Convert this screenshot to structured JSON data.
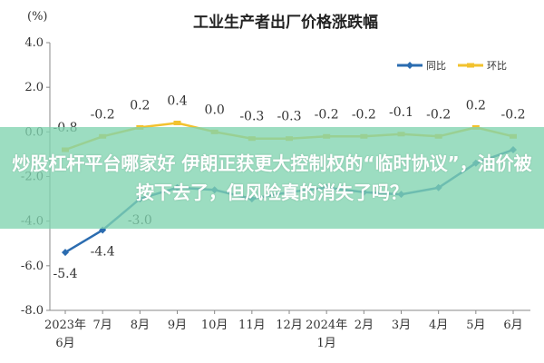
{
  "chart_data": {
    "type": "line",
    "title": "工业生产者出厂价格涨跌幅",
    "y_unit": "(%)",
    "ylim": [
      -8.0,
      4.0
    ],
    "yticks": [
      "4.0",
      "2.0",
      "0.0",
      "-2.0",
      "-4.0",
      "-6.0",
      "-8.0"
    ],
    "categories": [
      "2023年6月",
      "7月",
      "8月",
      "9月",
      "10月",
      "11月",
      "12月",
      "2024年1月",
      "2月",
      "3月",
      "4月",
      "5月",
      "6月"
    ],
    "category_lines": [
      [
        "2023年",
        "6月"
      ],
      [
        "7月"
      ],
      [
        "8月"
      ],
      [
        "9月"
      ],
      [
        "10月"
      ],
      [
        "11月"
      ],
      [
        "12月"
      ],
      [
        "2024年",
        "1月"
      ],
      [
        "2月"
      ],
      [
        "3月"
      ],
      [
        "4月"
      ],
      [
        "5月"
      ],
      [
        "6月"
      ]
    ],
    "series": [
      {
        "name": "同比",
        "color": "#2b6cb0",
        "values": [
          -5.4,
          -4.4,
          -3.0,
          -2.5,
          -2.6,
          -3.0,
          -2.7,
          -2.5,
          -2.7,
          -2.8,
          -2.5,
          -1.4,
          -0.8
        ],
        "labels": [
          "-5.4",
          "-4.4",
          "-3.0",
          "",
          "",
          "",
          "",
          "",
          "",
          "",
          "",
          "",
          ""
        ]
      },
      {
        "name": "环比",
        "color": "#f2c22e",
        "values": [
          -0.8,
          -0.2,
          0.2,
          0.4,
          0.0,
          -0.3,
          -0.3,
          -0.2,
          -0.2,
          -0.1,
          -0.2,
          0.2,
          -0.2
        ],
        "labels": [
          "-0.8",
          "-0.2",
          "0.2",
          "0.4",
          "0.0",
          "-0.3",
          "-0.3",
          "-0.2",
          "-0.2",
          "-0.1",
          "-0.2",
          "0.2",
          "-0.2"
        ]
      }
    ],
    "legend": "top-right",
    "grid": false
  },
  "overlay": {
    "text": "炒股杠杆平台哪家好 伊朗正获更大控制权的“临时协议”，油价被按下去了，但风险真的消失了吗？",
    "background": "#80d4b0"
  }
}
